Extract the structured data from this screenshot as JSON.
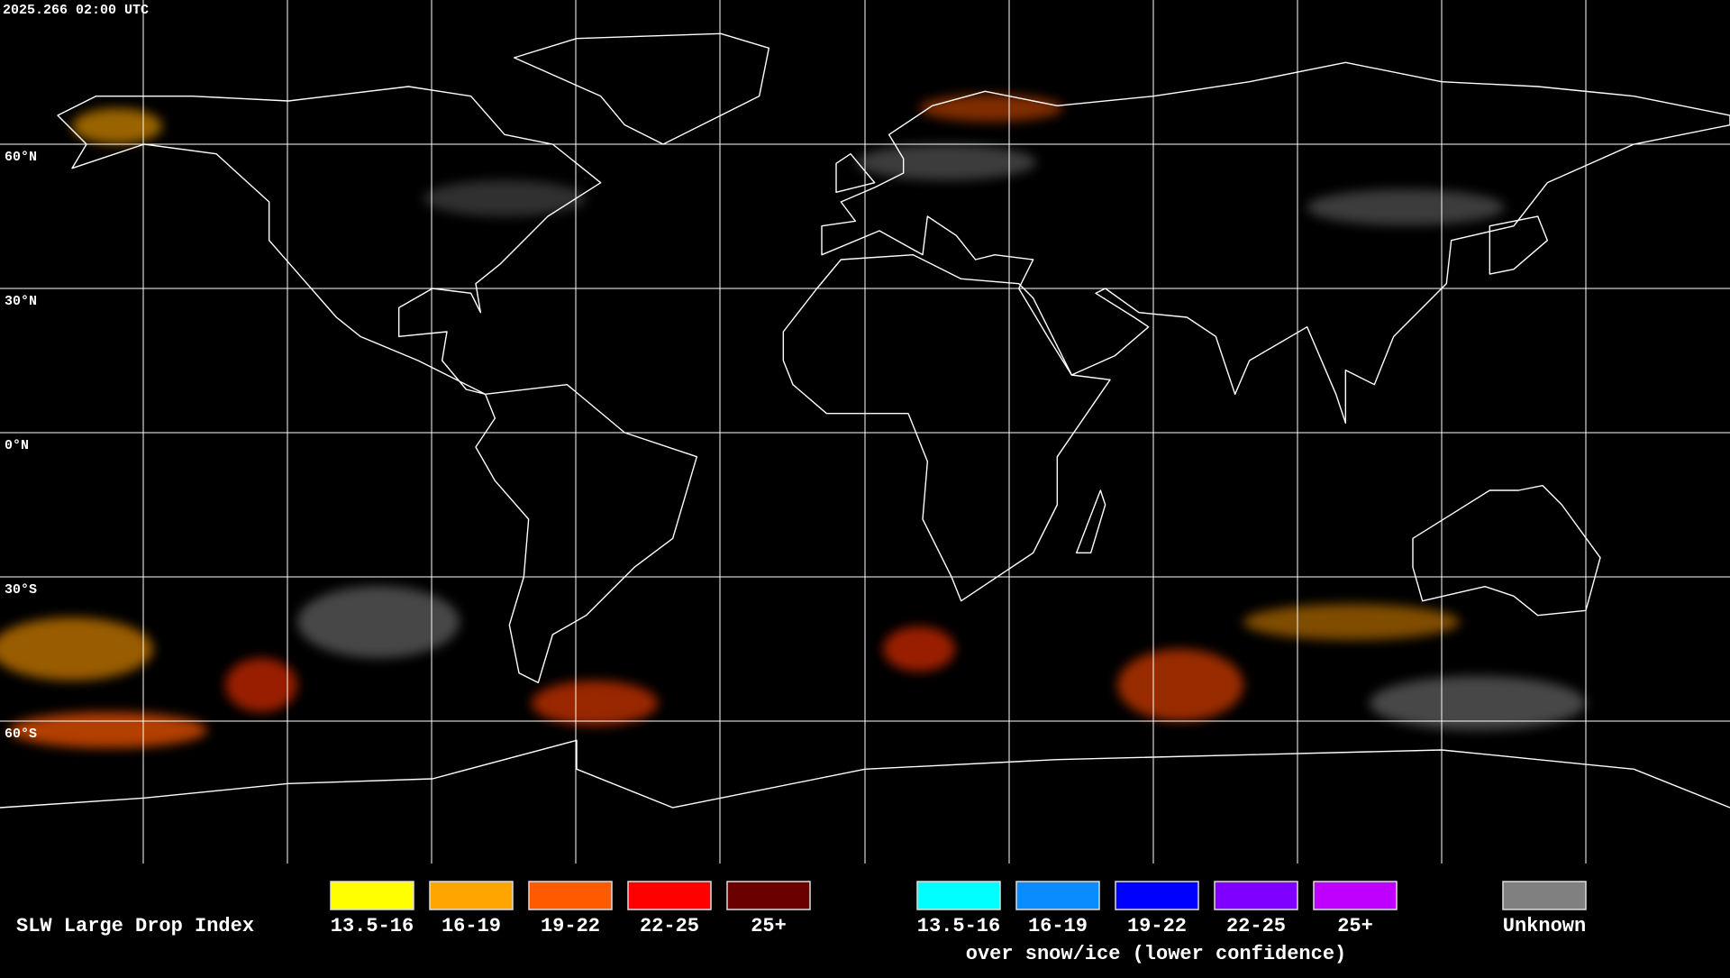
{
  "timestamp": "2025.266 02:00 UTC",
  "latitude_labels": [
    "60°N",
    "30°N",
    "0°N",
    "30°S",
    "60°S"
  ],
  "legend": {
    "title": "SLW Large Drop Index",
    "classes": [
      {
        "label": "13.5-16",
        "color": "#ffff00"
      },
      {
        "label": "16-19",
        "color": "#ffa500"
      },
      {
        "label": "19-22",
        "color": "#ff5a00"
      },
      {
        "label": "22-25",
        "color": "#ff0000"
      },
      {
        "label": "25+",
        "color": "#6a0000"
      }
    ],
    "snow_ice_classes": [
      {
        "label": "13.5-16",
        "color": "#00ffff"
      },
      {
        "label": "16-19",
        "color": "#0a8cff"
      },
      {
        "label": "19-22",
        "color": "#0000ff"
      },
      {
        "label": "22-25",
        "color": "#8000ff"
      },
      {
        "label": "25+",
        "color": "#c000ff"
      }
    ],
    "snow_ice_note": "over snow/ice (lower confidence)",
    "unknown": {
      "label": "Unknown",
      "color": "#808080"
    }
  }
}
